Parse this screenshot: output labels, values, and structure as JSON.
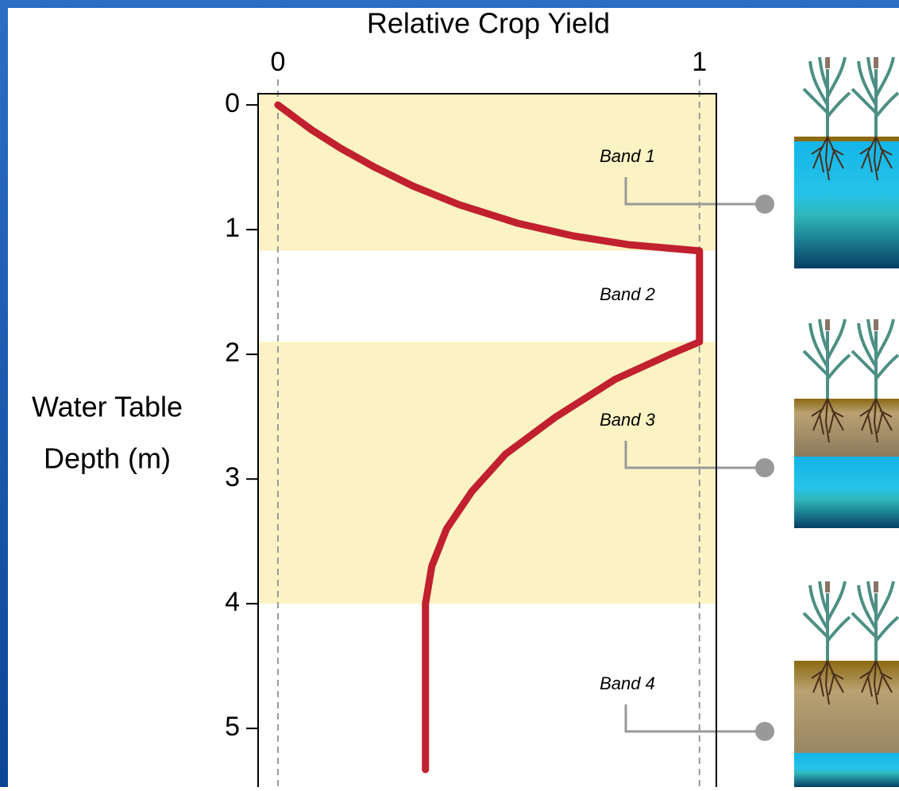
{
  "chart_data": {
    "type": "line",
    "xlabel": "Relative Crop Yield",
    "ylabel": [
      "Water Table",
      "Depth (m)"
    ],
    "xlim": [
      -0.047,
      1.04
    ],
    "xticks": [
      0,
      1
    ],
    "ylim": [
      -0.09,
      5.47
    ],
    "yticks": [
      0,
      1,
      2,
      3,
      4,
      5
    ],
    "y_inverted": true,
    "grid": true,
    "bands": [
      {
        "label": "Band 1",
        "from": -0.09,
        "to": 1.17,
        "color": "#fbf3c3"
      },
      {
        "label": "Band 2",
        "from": 1.17,
        "to": 1.9,
        "color": "#ffffff"
      },
      {
        "label": "Band 3",
        "from": 1.9,
        "to": 4.0,
        "color": "#fbf3c3"
      },
      {
        "label": "Band 4",
        "from": 4.0,
        "to": 5.47,
        "color": "#ffffff"
      }
    ],
    "series": [
      {
        "color": "#c1202f",
        "x": [
          0,
          0.04,
          0.08,
          0.15,
          0.23,
          0.32,
          0.43,
          0.57,
          0.7,
          0.83,
          1.0,
          1.0,
          0.93,
          0.8,
          0.66,
          0.54,
          0.46,
          0.4,
          0.365,
          0.35,
          0.35
        ],
        "y": [
          0,
          0.1,
          0.2,
          0.35,
          0.5,
          0.65,
          0.8,
          0.95,
          1.05,
          1.12,
          1.17,
          1.9,
          2.0,
          2.2,
          2.5,
          2.8,
          3.1,
          3.4,
          3.7,
          4.0,
          5.33
        ]
      }
    ]
  }
}
